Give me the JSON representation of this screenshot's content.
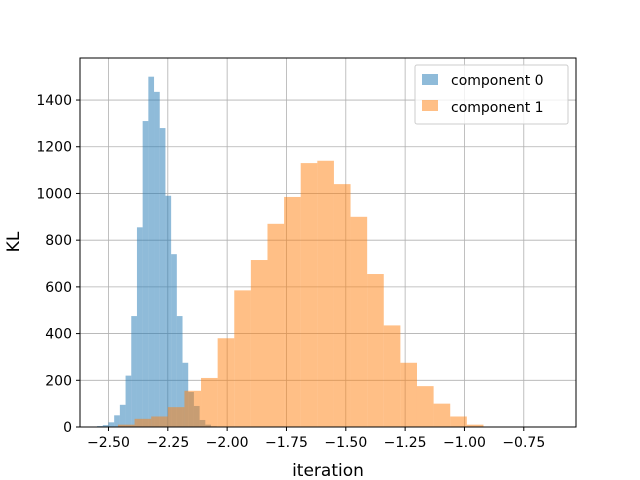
{
  "chart_data": {
    "type": "histogram",
    "xlabel": "iteration",
    "ylabel": "KL",
    "xlim": [
      -2.62,
      -0.53
    ],
    "ylim": [
      0,
      1580
    ],
    "xticks": [
      -2.5,
      -2.25,
      -2.0,
      -1.75,
      -1.5,
      -1.25,
      -1.0,
      -0.75
    ],
    "xtick_labels": [
      "−2.50",
      "−2.25",
      "−2.00",
      "−1.75",
      "−1.50",
      "−1.25",
      "−1.00",
      "−0.75"
    ],
    "yticks": [
      0,
      200,
      400,
      600,
      800,
      1000,
      1200,
      1400
    ],
    "ytick_labels": [
      "0",
      "200",
      "400",
      "600",
      "800",
      "1000",
      "1200",
      "1400"
    ],
    "grid": true,
    "legend_position": "top-right",
    "series": [
      {
        "name": "component 0",
        "color": "#1f77b4",
        "opacity": 0.5,
        "bins": [
          {
            "x0": -2.548,
            "x1": -2.524,
            "count": 4
          },
          {
            "x0": -2.524,
            "x1": -2.5,
            "count": 8
          },
          {
            "x0": -2.5,
            "x1": -2.476,
            "count": 20
          },
          {
            "x0": -2.476,
            "x1": -2.452,
            "count": 50
          },
          {
            "x0": -2.452,
            "x1": -2.428,
            "count": 95
          },
          {
            "x0": -2.428,
            "x1": -2.404,
            "count": 220
          },
          {
            "x0": -2.404,
            "x1": -2.38,
            "count": 475
          },
          {
            "x0": -2.38,
            "x1": -2.356,
            "count": 855
          },
          {
            "x0": -2.356,
            "x1": -2.332,
            "count": 1310
          },
          {
            "x0": -2.332,
            "x1": -2.308,
            "count": 1500
          },
          {
            "x0": -2.308,
            "x1": -2.284,
            "count": 1435
          },
          {
            "x0": -2.284,
            "x1": -2.26,
            "count": 1280
          },
          {
            "x0": -2.26,
            "x1": -2.236,
            "count": 990
          },
          {
            "x0": -2.236,
            "x1": -2.212,
            "count": 740
          },
          {
            "x0": -2.212,
            "x1": -2.188,
            "count": 475
          },
          {
            "x0": -2.188,
            "x1": -2.164,
            "count": 275
          },
          {
            "x0": -2.164,
            "x1": -2.14,
            "count": 150
          },
          {
            "x0": -2.14,
            "x1": -2.116,
            "count": 90
          },
          {
            "x0": -2.116,
            "x1": -2.092,
            "count": 30
          },
          {
            "x0": -2.092,
            "x1": -2.068,
            "count": 10
          },
          {
            "x0": -2.068,
            "x1": -2.044,
            "count": 3
          }
        ]
      },
      {
        "name": "component 1",
        "color": "#ff7f0e",
        "opacity": 0.5,
        "bins": [
          {
            "x0": -2.46,
            "x1": -2.39,
            "count": 10
          },
          {
            "x0": -2.39,
            "x1": -2.32,
            "count": 35
          },
          {
            "x0": -2.32,
            "x1": -2.25,
            "count": 45
          },
          {
            "x0": -2.25,
            "x1": -2.18,
            "count": 85
          },
          {
            "x0": -2.18,
            "x1": -2.11,
            "count": 155
          },
          {
            "x0": -2.11,
            "x1": -2.04,
            "count": 210
          },
          {
            "x0": -2.04,
            "x1": -1.97,
            "count": 380
          },
          {
            "x0": -1.97,
            "x1": -1.9,
            "count": 585
          },
          {
            "x0": -1.9,
            "x1": -1.83,
            "count": 715
          },
          {
            "x0": -1.83,
            "x1": -1.76,
            "count": 870
          },
          {
            "x0": -1.76,
            "x1": -1.69,
            "count": 985
          },
          {
            "x0": -1.69,
            "x1": -1.62,
            "count": 1130
          },
          {
            "x0": -1.62,
            "x1": -1.55,
            "count": 1140
          },
          {
            "x0": -1.55,
            "x1": -1.48,
            "count": 1040
          },
          {
            "x0": -1.48,
            "x1": -1.41,
            "count": 900
          },
          {
            "x0": -1.41,
            "x1": -1.34,
            "count": 655
          },
          {
            "x0": -1.34,
            "x1": -1.27,
            "count": 435
          },
          {
            "x0": -1.27,
            "x1": -1.2,
            "count": 275
          },
          {
            "x0": -1.2,
            "x1": -1.13,
            "count": 175
          },
          {
            "x0": -1.13,
            "x1": -1.06,
            "count": 100
          },
          {
            "x0": -1.06,
            "x1": -0.99,
            "count": 45
          },
          {
            "x0": -0.99,
            "x1": -0.92,
            "count": 10
          }
        ]
      }
    ]
  }
}
